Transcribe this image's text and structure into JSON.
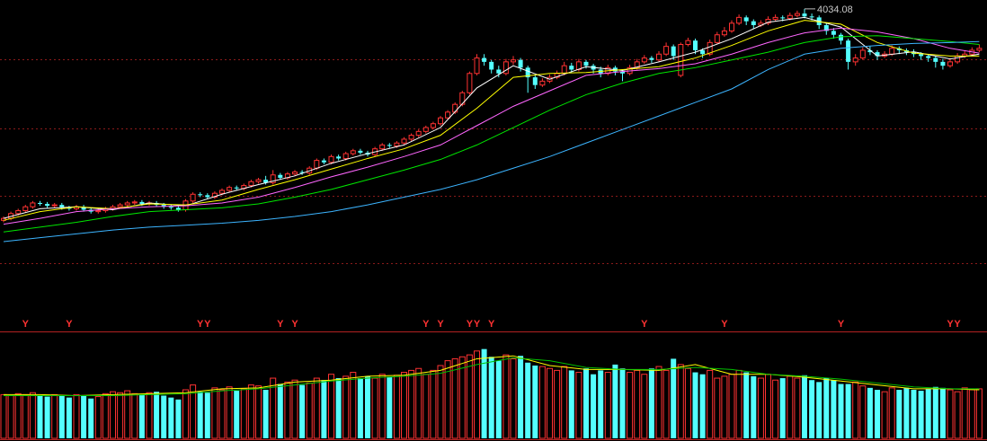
{
  "chart_data": {
    "type": "candlestick",
    "ylim": [
      2500,
      4080
    ],
    "vlim": [
      0,
      100
    ],
    "up_color": "#ff3232",
    "down_color": "#54ffff",
    "candles": [
      [
        2940,
        2960,
        2930,
        2950
      ],
      [
        2950,
        2985,
        2940,
        2975
      ],
      [
        2975,
        3000,
        2965,
        2990
      ],
      [
        2990,
        3020,
        2980,
        3010
      ],
      [
        3010,
        3040,
        3000,
        3030
      ],
      [
        3030,
        3040,
        3015,
        3025
      ],
      [
        3025,
        3035,
        3005,
        3015
      ],
      [
        3015,
        3030,
        3005,
        3020
      ],
      [
        3020,
        3030,
        2995,
        3005
      ],
      [
        3005,
        3015,
        2990,
        3000
      ],
      [
        3000,
        3020,
        2990,
        3010
      ],
      [
        3010,
        3020,
        2985,
        2995
      ],
      [
        2995,
        3005,
        2975,
        2985
      ],
      [
        2985,
        3000,
        2975,
        2990
      ],
      [
        2990,
        3010,
        2980,
        3000
      ],
      [
        3000,
        3020,
        2990,
        3010
      ],
      [
        3010,
        3030,
        3000,
        3020
      ],
      [
        3020,
        3040,
        3010,
        3030
      ],
      [
        3030,
        3045,
        3020,
        3035
      ],
      [
        3035,
        3045,
        3015,
        3025
      ],
      [
        3025,
        3040,
        3015,
        3030
      ],
      [
        3030,
        3040,
        3010,
        3020
      ],
      [
        3020,
        3030,
        3000,
        3010
      ],
      [
        3010,
        3020,
        2995,
        3005
      ],
      [
        3005,
        3015,
        2985,
        2995
      ],
      [
        2995,
        3050,
        2985,
        3040
      ],
      [
        3040,
        3085,
        3030,
        3075
      ],
      [
        3075,
        3085,
        3060,
        3070
      ],
      [
        3070,
        3080,
        3050,
        3060
      ],
      [
        3060,
        3090,
        3050,
        3080
      ],
      [
        3080,
        3105,
        3070,
        3095
      ],
      [
        3095,
        3120,
        3085,
        3110
      ],
      [
        3110,
        3120,
        3095,
        3105
      ],
      [
        3105,
        3130,
        3095,
        3120
      ],
      [
        3120,
        3150,
        3110,
        3140
      ],
      [
        3140,
        3160,
        3130,
        3150
      ],
      [
        3150,
        3170,
        3125,
        3135
      ],
      [
        3135,
        3200,
        3125,
        3175
      ],
      [
        3175,
        3185,
        3150,
        3160
      ],
      [
        3160,
        3190,
        3150,
        3180
      ],
      [
        3180,
        3200,
        3170,
        3190
      ],
      [
        3190,
        3200,
        3175,
        3185
      ],
      [
        3185,
        3220,
        3175,
        3210
      ],
      [
        3210,
        3260,
        3200,
        3250
      ],
      [
        3250,
        3260,
        3230,
        3240
      ],
      [
        3240,
        3280,
        3230,
        3270
      ],
      [
        3270,
        3280,
        3250,
        3260
      ],
      [
        3260,
        3295,
        3250,
        3285
      ],
      [
        3285,
        3310,
        3275,
        3300
      ],
      [
        3300,
        3310,
        3280,
        3290
      ],
      [
        3290,
        3300,
        3270,
        3280
      ],
      [
        3280,
        3320,
        3270,
        3310
      ],
      [
        3310,
        3340,
        3300,
        3330
      ],
      [
        3330,
        3340,
        3315,
        3325
      ],
      [
        3325,
        3350,
        3315,
        3340
      ],
      [
        3340,
        3370,
        3330,
        3360
      ],
      [
        3360,
        3390,
        3350,
        3380
      ],
      [
        3380,
        3410,
        3370,
        3400
      ],
      [
        3400,
        3430,
        3390,
        3420
      ],
      [
        3420,
        3450,
        3410,
        3440
      ],
      [
        3440,
        3480,
        3430,
        3470
      ],
      [
        3470,
        3510,
        3460,
        3500
      ],
      [
        3500,
        3550,
        3490,
        3540
      ],
      [
        3540,
        3610,
        3530,
        3600
      ],
      [
        3600,
        3710,
        3590,
        3700
      ],
      [
        3700,
        3800,
        3690,
        3780
      ],
      [
        3780,
        3800,
        3740,
        3760
      ],
      [
        3760,
        3770,
        3700,
        3720
      ],
      [
        3720,
        3740,
        3680,
        3700
      ],
      [
        3700,
        3775,
        3690,
        3760
      ],
      [
        3760,
        3790,
        3745,
        3770
      ],
      [
        3770,
        3780,
        3710,
        3730
      ],
      [
        3730,
        3740,
        3600,
        3680
      ],
      [
        3680,
        3690,
        3620,
        3640
      ],
      [
        3640,
        3675,
        3630,
        3660
      ],
      [
        3660,
        3695,
        3650,
        3680
      ],
      [
        3680,
        3715,
        3670,
        3700
      ],
      [
        3700,
        3760,
        3690,
        3740
      ],
      [
        3740,
        3755,
        3705,
        3720
      ],
      [
        3720,
        3775,
        3710,
        3760
      ],
      [
        3760,
        3770,
        3725,
        3740
      ],
      [
        3740,
        3750,
        3700,
        3720
      ],
      [
        3720,
        3735,
        3680,
        3700
      ],
      [
        3700,
        3745,
        3690,
        3730
      ],
      [
        3730,
        3740,
        3690,
        3710
      ],
      [
        3710,
        3720,
        3660,
        3700
      ],
      [
        3700,
        3745,
        3690,
        3730
      ],
      [
        3730,
        3775,
        3720,
        3760
      ],
      [
        3760,
        3795,
        3750,
        3780
      ],
      [
        3780,
        3790,
        3755,
        3770
      ],
      [
        3770,
        3815,
        3760,
        3800
      ],
      [
        3800,
        3860,
        3790,
        3840
      ],
      [
        3840,
        3850,
        3770,
        3790
      ],
      [
        3690,
        3860,
        3680,
        3850
      ],
      [
        3850,
        3885,
        3840,
        3870
      ],
      [
        3870,
        3880,
        3800,
        3820
      ],
      [
        3820,
        3830,
        3780,
        3800
      ],
      [
        3800,
        3875,
        3790,
        3860
      ],
      [
        3860,
        3915,
        3850,
        3900
      ],
      [
        3900,
        3940,
        3890,
        3920
      ],
      [
        3920,
        3975,
        3910,
        3960
      ],
      [
        3960,
        4005,
        3950,
        3990
      ],
      [
        3990,
        4000,
        3950,
        3970
      ],
      [
        3970,
        3980,
        3930,
        3950
      ],
      [
        3950,
        3975,
        3940,
        3960
      ],
      [
        3960,
        3995,
        3950,
        3980
      ],
      [
        3980,
        4005,
        3970,
        3990
      ],
      [
        3990,
        4000,
        3970,
        3985
      ],
      [
        3985,
        4015,
        3975,
        4000
      ],
      [
        4000,
        4025,
        3990,
        4010
      ],
      [
        4010,
        4034.08,
        3985,
        3995
      ],
      [
        3995,
        4010,
        3975,
        3990
      ],
      [
        3990,
        4000,
        3930,
        3950
      ],
      [
        3950,
        3960,
        3900,
        3920
      ],
      [
        3920,
        3935,
        3880,
        3900
      ],
      [
        3900,
        3910,
        3850,
        3870
      ],
      [
        3870,
        3880,
        3720,
        3760
      ],
      [
        3760,
        3800,
        3740,
        3780
      ],
      [
        3780,
        3835,
        3770,
        3820
      ],
      [
        3820,
        3840,
        3795,
        3810
      ],
      [
        3810,
        3820,
        3770,
        3790
      ],
      [
        3790,
        3815,
        3780,
        3800
      ],
      [
        3800,
        3845,
        3790,
        3830
      ],
      [
        3830,
        3840,
        3800,
        3820
      ],
      [
        3820,
        3830,
        3795,
        3810
      ],
      [
        3810,
        3825,
        3785,
        3800
      ],
      [
        3800,
        3810,
        3770,
        3790
      ],
      [
        3790,
        3800,
        3760,
        3780
      ],
      [
        3780,
        3790,
        3730,
        3760
      ],
      [
        3760,
        3775,
        3720,
        3740
      ],
      [
        3740,
        3775,
        3730,
        3760
      ],
      [
        3760,
        3805,
        3750,
        3790
      ],
      [
        3790,
        3815,
        3780,
        3800
      ],
      [
        3800,
        3835,
        3790,
        3820
      ],
      [
        3820,
        3850,
        3810,
        3830
      ]
    ],
    "volumes": [
      45,
      44,
      46,
      45,
      47,
      44,
      43,
      45,
      44,
      42,
      45,
      44,
      41,
      43,
      46,
      48,
      47,
      49,
      46,
      45,
      47,
      48,
      44,
      42,
      40,
      50,
      55,
      48,
      47,
      52,
      50,
      53,
      49,
      51,
      55,
      54,
      50,
      62,
      56,
      58,
      60,
      55,
      57,
      62,
      60,
      66,
      62,
      64,
      68,
      62,
      64,
      62,
      66,
      63,
      65,
      68,
      70,
      72,
      66,
      70,
      75,
      80,
      82,
      84,
      86,
      90,
      92,
      84,
      80,
      86,
      82,
      85,
      78,
      75,
      74,
      72,
      70,
      74,
      70,
      68,
      72,
      66,
      70,
      68,
      76,
      72,
      68,
      70,
      66,
      72,
      74,
      70,
      82,
      76,
      72,
      68,
      66,
      70,
      62,
      64,
      66,
      70,
      68,
      64,
      62,
      66,
      60,
      62,
      64,
      62,
      65,
      60,
      58,
      62,
      60,
      56,
      56,
      58,
      54,
      52,
      50,
      48,
      52,
      50,
      52,
      50,
      49,
      51,
      53,
      52,
      50,
      48,
      52,
      50,
      51
    ],
    "ma_x": [
      0,
      5,
      10,
      15,
      20,
      25,
      30,
      35,
      40,
      45,
      50,
      55,
      60,
      65,
      70,
      75,
      80,
      85,
      90,
      95,
      100,
      105,
      110,
      115,
      120,
      125,
      130,
      134
    ],
    "ma": [
      {
        "color": "#ffffff",
        "values": [
          2950,
          3000,
          3010,
          2995,
          3030,
          3015,
          3075,
          3125,
          3170,
          3235,
          3285,
          3330,
          3420,
          3625,
          3740,
          3670,
          3735,
          3715,
          3760,
          3810,
          3880,
          3965,
          3990,
          3940,
          3790,
          3812,
          3775,
          3800
        ]
      },
      {
        "color": "#ffff00",
        "values": [
          2940,
          2985,
          3010,
          3000,
          3025,
          3020,
          3045,
          3100,
          3150,
          3205,
          3260,
          3310,
          3380,
          3520,
          3680,
          3700,
          3705,
          3720,
          3735,
          3780,
          3845,
          3920,
          3975,
          3955,
          3860,
          3805,
          3790,
          3790
        ]
      },
      {
        "color": "#ff66ff",
        "values": [
          2920,
          2950,
          2985,
          3000,
          3010,
          3015,
          3030,
          3060,
          3110,
          3165,
          3215,
          3270,
          3330,
          3430,
          3530,
          3610,
          3690,
          3710,
          3725,
          3750,
          3800,
          3860,
          3910,
          3935,
          3915,
          3880,
          3830,
          3805
        ]
      },
      {
        "color": "#00e600",
        "values": [
          2880,
          2905,
          2930,
          2960,
          2985,
          2995,
          3005,
          3025,
          3060,
          3100,
          3150,
          3200,
          3255,
          3330,
          3420,
          3510,
          3590,
          3650,
          3700,
          3730,
          3770,
          3810,
          3860,
          3890,
          3895,
          3880,
          3865,
          3850
        ]
      },
      {
        "color": "#3cb4ff",
        "values": [
          2830,
          2850,
          2870,
          2890,
          2905,
          2915,
          2925,
          2940,
          2960,
          2985,
          3020,
          3060,
          3100,
          3150,
          3210,
          3270,
          3340,
          3410,
          3480,
          3550,
          3620,
          3720,
          3800,
          3830,
          3845,
          3855,
          3860,
          3865
        ]
      }
    ],
    "vma": [
      {
        "color": "#ffff00",
        "values": [
          45,
          45,
          44,
          45,
          46,
          47,
          51,
          52,
          58,
          60,
          64,
          65,
          70,
          82,
          85,
          75,
          71,
          71,
          70,
          76,
          66,
          66,
          63,
          59,
          55,
          51,
          51,
          50
        ]
      },
      {
        "color": "#00c000",
        "values": [
          44,
          44,
          44,
          44,
          45,
          46,
          49,
          51,
          55,
          59,
          62,
          64,
          67,
          76,
          83,
          80,
          73,
          71,
          71,
          73,
          71,
          66,
          64,
          61,
          57,
          53,
          51,
          51
        ]
      }
    ],
    "signals": [
      {
        "index": 3,
        "label": "Y"
      },
      {
        "index": 9,
        "label": "Y"
      },
      {
        "index": 27,
        "label": "Y"
      },
      {
        "index": 28,
        "label": "Y"
      },
      {
        "index": 38,
        "label": "Y"
      },
      {
        "index": 40,
        "label": "Y"
      },
      {
        "index": 58,
        "label": "Y"
      },
      {
        "index": 60,
        "label": "Y"
      },
      {
        "index": 64,
        "label": "Y"
      },
      {
        "index": 65,
        "label": "Y"
      },
      {
        "index": 67,
        "label": "Y"
      },
      {
        "index": 88,
        "label": "Y"
      },
      {
        "index": 99,
        "label": "Y"
      },
      {
        "index": 115,
        "label": "Y"
      },
      {
        "index": 130,
        "label": "Y"
      },
      {
        "index": 131,
        "label": "Y"
      }
    ],
    "high_marker": 110
  }
}
